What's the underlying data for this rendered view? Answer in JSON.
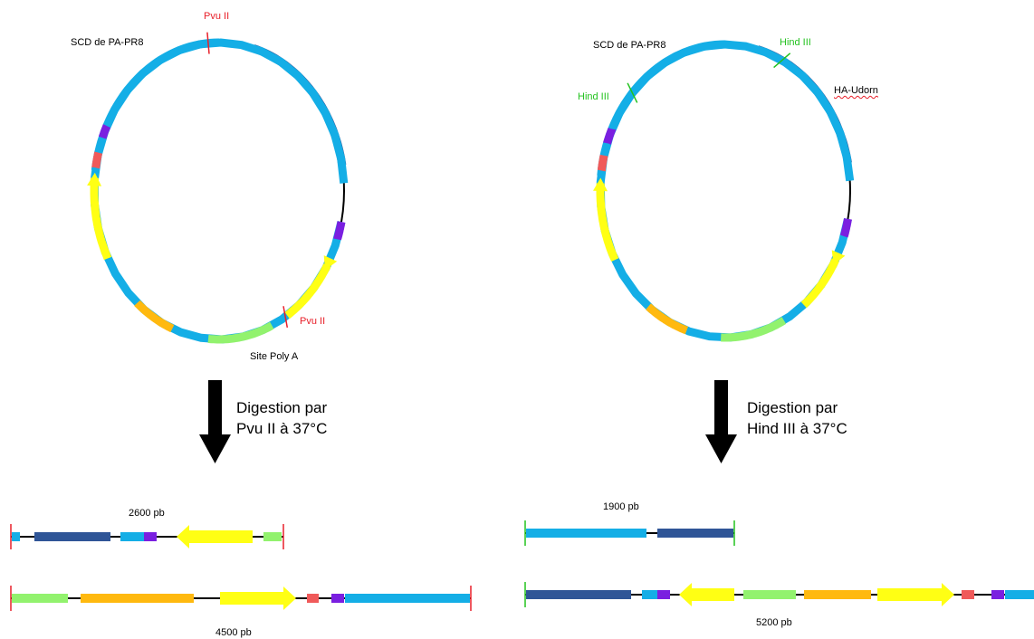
{
  "colors": {
    "light_blue": "#14aee6",
    "dark_blue": "#2f5597",
    "purple": "#7a1fe0",
    "red_box": "#f05a5a",
    "yellow": "#ffff14",
    "orange": "#ffb90f",
    "light_green": "#92f26e",
    "pvu_red": "#e8202a",
    "hind_green": "#22c21e",
    "line": "#000000"
  },
  "left_plasmid": {
    "label_scd": "SCD de PA-PR8",
    "label_pvu_top": "Pvu II",
    "label_pvu_bottom": "Pvu II",
    "label_polya": "Site Poly A"
  },
  "right_plasmid": {
    "label_scd": "SCD de PA-PR8",
    "label_hind_top": "Hind III",
    "label_hind_left": "Hind III",
    "label_ha": "HA-Udorn"
  },
  "left_digest": {
    "line1": "Digestion par",
    "line2": "Pvu II à 37°C"
  },
  "right_digest": {
    "line1": "Digestion par",
    "line2": "Hind III à 37°C"
  },
  "fragments": {
    "left_small": "2600 pb",
    "left_large": "4500 pb",
    "right_small": "1900 pb",
    "right_large": "5200 pb"
  }
}
